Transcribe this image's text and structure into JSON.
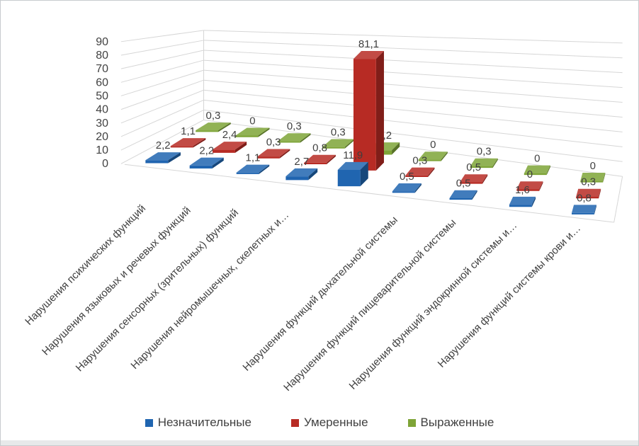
{
  "chart_data": {
    "type": "bar",
    "subtype": "3d-column",
    "title": "",
    "decimal_separator": ",",
    "grid": true,
    "legend_position": "bottom",
    "y_axis": {
      "min": 0,
      "max": 90,
      "step": 10,
      "tick_labels": [
        "0",
        "10",
        "20",
        "30",
        "40",
        "50",
        "60",
        "70",
        "80",
        "90"
      ]
    },
    "categories": [
      "Нарушения психических функций",
      "Нарушения языковых и речевых функций",
      "Нарушения сенсорных (зрительных) функций",
      "Нарушения нейромышечных, скелетных и…",
      "",
      "Нарушения функций дыхательной системы",
      "Нарушения функций пищеварительной системы",
      "Нарушения функций эндокринной системы и…",
      "Нарушения функций системы крови и…"
    ],
    "series": [
      {
        "name": "Незначительные",
        "color": "#2065b0",
        "values": [
          2.2,
          2.2,
          1.1,
          2.7,
          11.9,
          0.5,
          0.5,
          1.6,
          0.8
        ]
      },
      {
        "name": "Умеренные",
        "color": "#b72b24",
        "values": [
          1.1,
          2.4,
          0.3,
          0.8,
          81.1,
          0.3,
          0.5,
          0,
          0.3
        ]
      },
      {
        "name": "Выраженные",
        "color": "#7ea437",
        "values": [
          0.3,
          0,
          0.3,
          0.3,
          3.2,
          0,
          0.3,
          0,
          0
        ]
      }
    ]
  },
  "legend": {
    "items": [
      {
        "label": "Незначительные",
        "color": "#2065b0"
      },
      {
        "label": "Умеренные",
        "color": "#b72b24"
      },
      {
        "label": "Выраженные",
        "color": "#7ea437"
      }
    ]
  },
  "colors": {
    "gridline": "#d6d6d6",
    "axis_text": "#404040",
    "background": "#ffffff"
  }
}
